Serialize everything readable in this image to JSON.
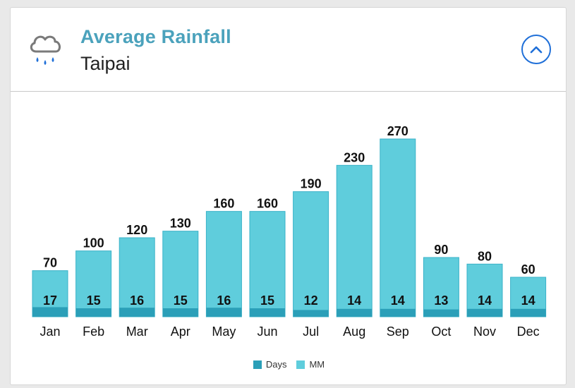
{
  "header": {
    "title": "Average Rainfall",
    "subtitle": "Taipai",
    "icon": "rain-cloud-icon",
    "collapse_icon": "chevron-up-icon"
  },
  "colors": {
    "title": "#4ba2bc",
    "mm_bar": "#5fcddc",
    "mm_bar_border": "#3ab2c8",
    "days_bar": "#2b9fb8",
    "button": "#1f6fd8"
  },
  "legend": {
    "days_label": "Days",
    "mm_label": "MM"
  },
  "chart_data": {
    "type": "bar",
    "title": "Average Rainfall",
    "subtitle": "Taipai",
    "categories": [
      "Jan",
      "Feb",
      "Mar",
      "Apr",
      "May",
      "Jun",
      "Jul",
      "Aug",
      "Sep",
      "Oct",
      "Nov",
      "Dec"
    ],
    "series": [
      {
        "name": "MM",
        "values": [
          70,
          100,
          120,
          130,
          160,
          160,
          190,
          230,
          270,
          90,
          80,
          60
        ]
      },
      {
        "name": "Days",
        "values": [
          17,
          15,
          16,
          15,
          16,
          15,
          12,
          14,
          14,
          13,
          14,
          14
        ]
      }
    ],
    "ylim": [
      0,
      280
    ],
    "grid": false,
    "legend_position": "bottom"
  }
}
